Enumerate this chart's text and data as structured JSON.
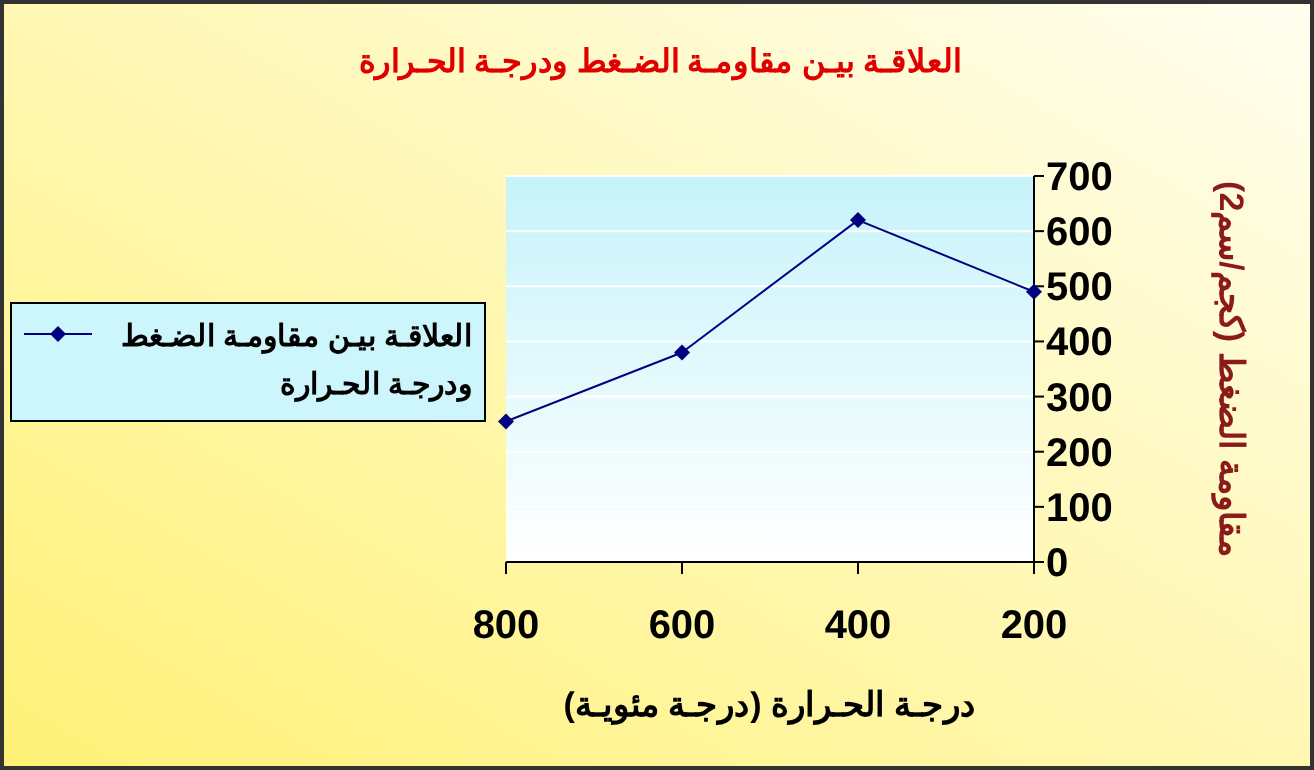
{
  "chart_data": {
    "type": "line",
    "title": "العلاقـة بيـن مقاومـة الضـغط ودرجـة الحـرارة",
    "xlabel": "درجـة الحـرارة (درجـة مئويـة)",
    "ylabel": "مقاومة الضغط (كجم/سم2)",
    "x": [
      800,
      600,
      400,
      200
    ],
    "xlim": [
      800,
      200
    ],
    "xticks": [
      800,
      600,
      400,
      200
    ],
    "ylim": [
      0,
      700
    ],
    "yticks": [
      0,
      100,
      200,
      300,
      400,
      500,
      600,
      700
    ],
    "series": [
      {
        "name": "العلاقـة بيـن مقاومـة الضـغط ودرجـة الحـرارة",
        "color": "#000080",
        "values": [
          255,
          380,
          620,
          490
        ]
      }
    ],
    "grid": "y",
    "legend": "left",
    "marker": "diamond",
    "line_style": "solid"
  }
}
